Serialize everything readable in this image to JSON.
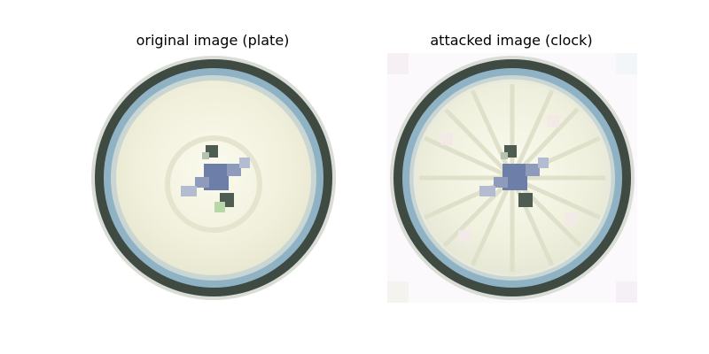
{
  "panels": [
    {
      "title": "original image (plate)",
      "subject": "plate"
    },
    {
      "title": "attacked image (clock)",
      "subject": "clock"
    }
  ],
  "colors": {
    "rim_dark": "#3f4a42",
    "rim_blue": "#8fb3c4",
    "face": "#f1f0dc",
    "face_light": "#fbfbef",
    "center_blue": "#6d7ea9",
    "center_dark": "#4f5c52"
  }
}
